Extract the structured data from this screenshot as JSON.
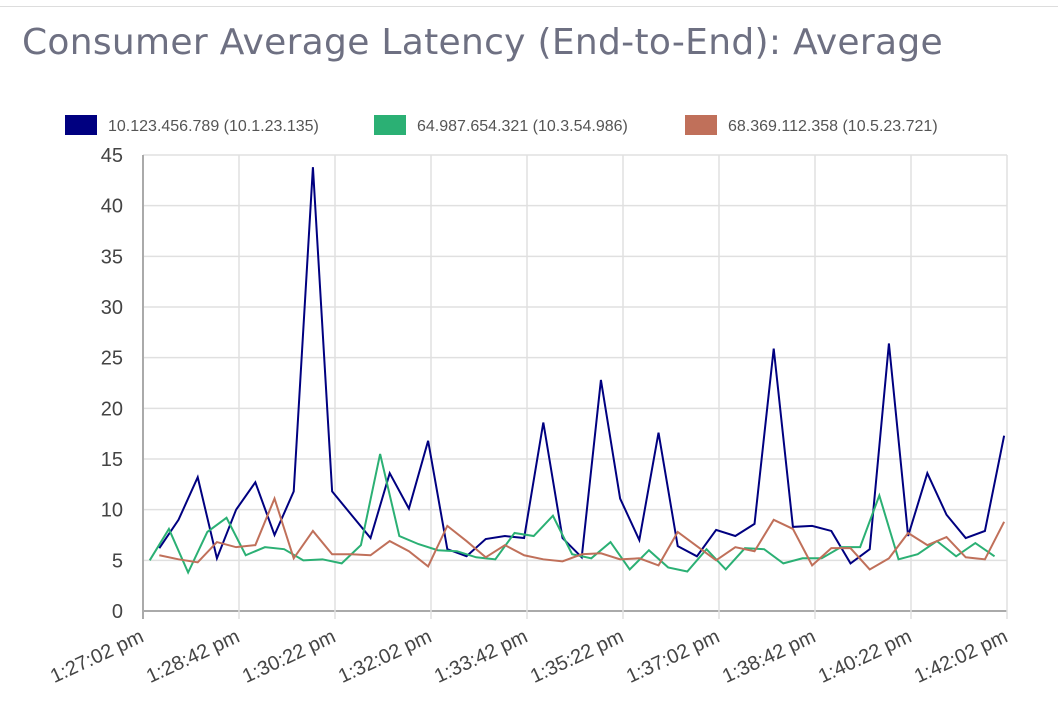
{
  "chart_data": {
    "type": "line",
    "title": "Consumer Average Latency (End-to-End): Average",
    "xlabel": "",
    "ylabel": "",
    "ylim": [
      0,
      45
    ],
    "yticks": [
      "0",
      "5",
      "10",
      "15",
      "20",
      "25",
      "30",
      "35",
      "40",
      "45"
    ],
    "xlim": [
      "13:27:02",
      "13:42:02"
    ],
    "xticks": [
      "1:27:02 pm",
      "1:28:42 pm",
      "1:30:22 pm",
      "1:32:02 pm",
      "1:33:42 pm",
      "1:35:22 pm",
      "1:37:02 pm",
      "1:38:42 pm",
      "1:40:22 pm",
      "1:42:02 pm"
    ],
    "grid": true,
    "legend": "top",
    "interval_seconds": 20,
    "series": [
      {
        "name": "10.123.456.789 (10.1.23.135)",
        "color": "#000080",
        "start": "13:27:19",
        "values": [
          6.2,
          9,
          13.2,
          5.2,
          10,
          12.7,
          7.5,
          11.8,
          43.8,
          11.8,
          9.5,
          7.2,
          13.6,
          10.1,
          16.8,
          6.1,
          5.4,
          7.1,
          7.4,
          7.2,
          18.6,
          7.2,
          5.3,
          22.8,
          11.1,
          7,
          17.6,
          6.4,
          5.4,
          8,
          7.4,
          8.6,
          25.9,
          8.3,
          8.4,
          7.9,
          4.7,
          6.1,
          26.4,
          7.4,
          13.6,
          9.5,
          7.2,
          7.9,
          17.3
        ]
      },
      {
        "name": "64.987.654.321 (10.3.54.986)",
        "color": "#2bb074",
        "start": "13:27:09",
        "values": [
          5,
          8.1,
          3.8,
          7.8,
          9.2,
          5.5,
          6.3,
          6.1,
          5,
          5.1,
          4.7,
          6.5,
          15.5,
          7.4,
          6.6,
          6,
          5.9,
          5.3,
          5.1,
          7.7,
          7.4,
          9.4,
          5.6,
          5.2,
          6.8,
          4.1,
          6,
          4.3,
          3.9,
          6.1,
          4.1,
          6.2,
          6.1,
          4.7,
          5.2,
          5.2,
          6.3,
          6.3,
          11.4,
          5.1,
          5.6,
          6.9,
          5.4,
          6.7,
          5.4
        ]
      },
      {
        "name": "68.369.112.358 (10.5.23.721)",
        "color": "#c0705a",
        "start": "13:27:19",
        "values": [
          5.5,
          5.1,
          4.8,
          6.8,
          6.3,
          6.5,
          11.1,
          5.2,
          7.9,
          5.6,
          5.6,
          5.5,
          6.9,
          5.9,
          4.4,
          8.4,
          6.9,
          5.3,
          6.5,
          5.5,
          5.1,
          4.9,
          5.6,
          5.7,
          5.1,
          5.2,
          4.5,
          7.8,
          6.4,
          5,
          6.3,
          5.9,
          9,
          8.1,
          4.5,
          6.2,
          6.2,
          4.1,
          5.2,
          7.7,
          6.5,
          7.3,
          5.3,
          5.1,
          8.8
        ]
      }
    ]
  }
}
